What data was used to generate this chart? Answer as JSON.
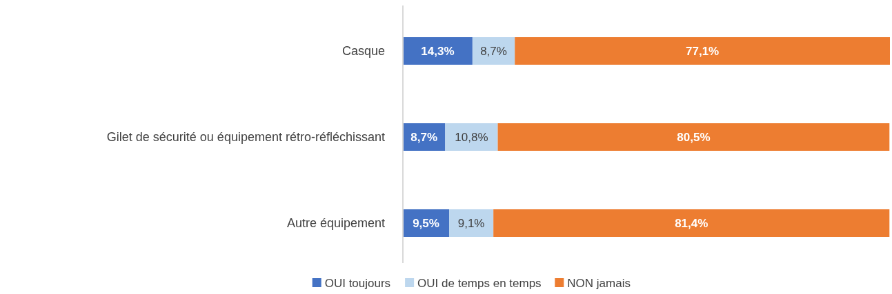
{
  "chart_data": {
    "type": "bar",
    "orientation": "horizontal",
    "stacked": true,
    "legend": "bottom",
    "categories": [
      "Casque",
      "Gilet de sécurité ou équipement rétro-réfléchissant",
      "Autre équipement"
    ],
    "series": [
      {
        "name": "OUI toujours",
        "color": "#4472c4",
        "values": [
          14.3,
          8.7,
          9.5
        ],
        "value_labels": [
          "14,3%",
          "8,7%",
          "9,5%"
        ]
      },
      {
        "name": "OUI de temps en temps",
        "color": "#bdd7ee",
        "values": [
          8.7,
          10.8,
          9.1
        ],
        "value_labels": [
          "8,7%",
          "10,8%",
          "9,1%"
        ]
      },
      {
        "name": "NON jamais",
        "color": "#ed7d31",
        "values": [
          77.1,
          80.5,
          81.4
        ],
        "value_labels": [
          "77,1%",
          "80,5%",
          "81,4%"
        ]
      }
    ]
  }
}
